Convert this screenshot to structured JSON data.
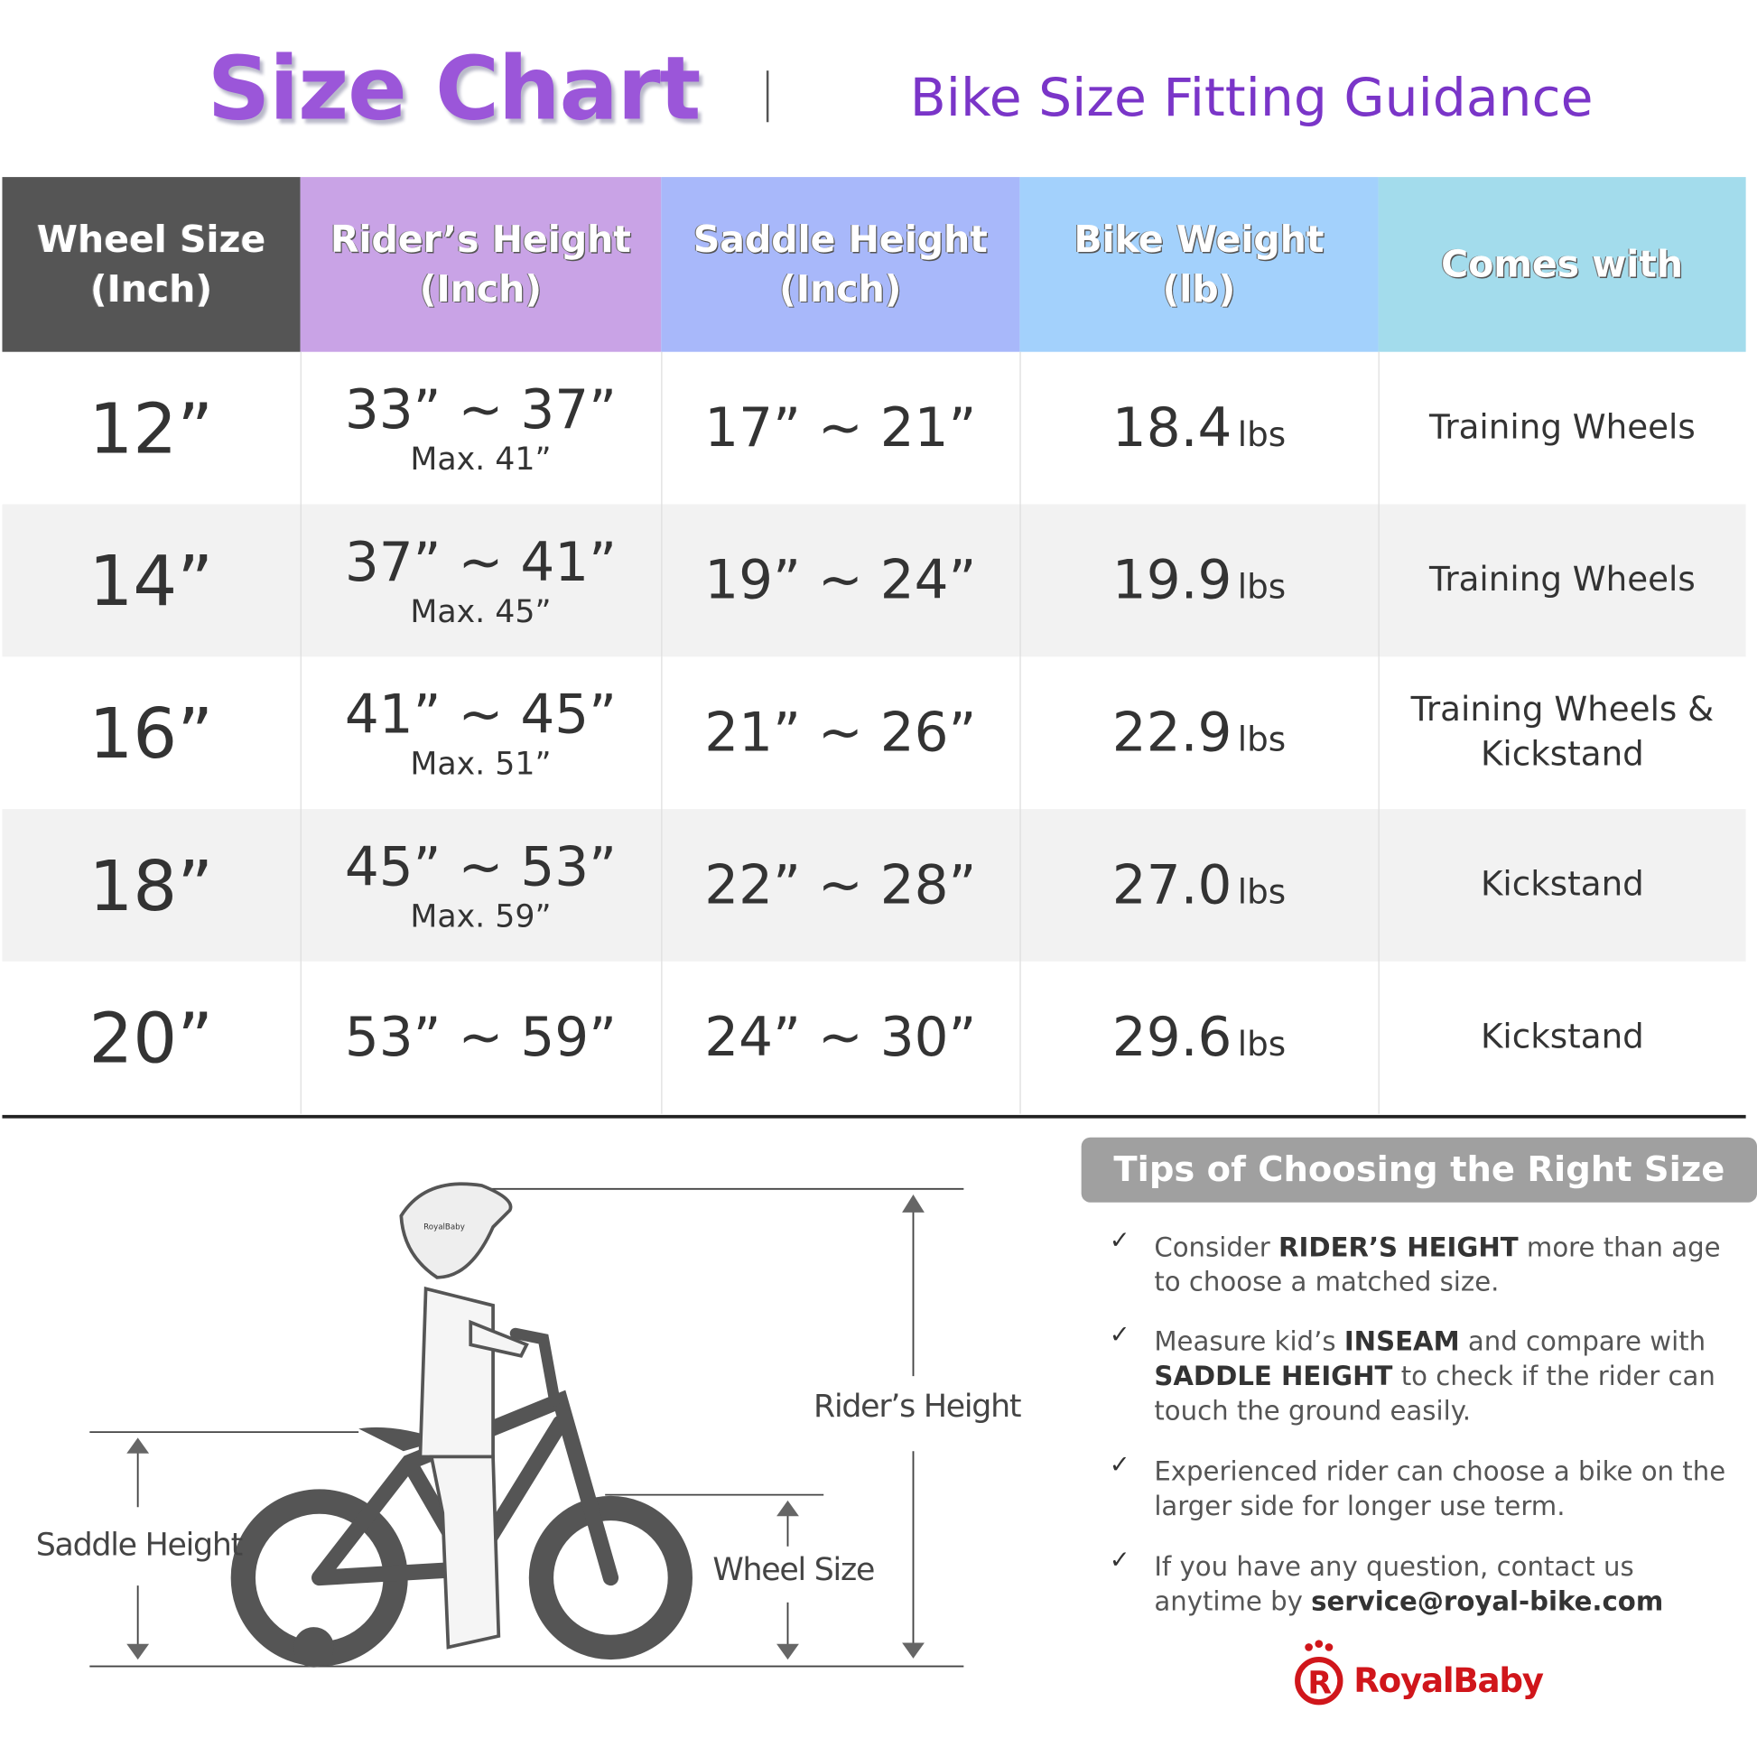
{
  "header": {
    "title": "Size Chart",
    "subtitle": "Bike Size Fitting Guidance"
  },
  "colors": {
    "title": "#9b56d9",
    "col_wheel": "#555555",
    "col_rider": "#c9a3e6",
    "col_saddle": "#a8b8fa",
    "col_weight": "#a3d1fc",
    "col_comes": "#a3dcec",
    "brand": "#d0161b"
  },
  "table": {
    "columns": [
      {
        "line1": "Wheel Size",
        "line2": "(Inch)"
      },
      {
        "line1": "Rider’s Height",
        "line2": "(Inch)"
      },
      {
        "line1": "Saddle Height",
        "line2": "(Inch)"
      },
      {
        "line1": "Bike Weight",
        "line2": "(lb)"
      },
      {
        "line1": "Comes with",
        "line2": ""
      }
    ],
    "rows": [
      {
        "wheel": "12”",
        "rider": "33” ~ 37”",
        "rider_max": "Max. 41”",
        "saddle": "17” ~ 21”",
        "weight": "18.4",
        "unit": "lbs",
        "comes": "Training Wheels",
        "comes2": ""
      },
      {
        "wheel": "14”",
        "rider": "37” ~ 41”",
        "rider_max": "Max. 45”",
        "saddle": "19” ~ 24”",
        "weight": "19.9",
        "unit": "lbs",
        "comes": "Training Wheels",
        "comes2": ""
      },
      {
        "wheel": "16”",
        "rider": "41” ~ 45”",
        "rider_max": "Max. 51”",
        "saddle": "21” ~ 26”",
        "weight": "22.9",
        "unit": "lbs",
        "comes": "Training Wheels &",
        "comes2": "Kickstand"
      },
      {
        "wheel": "18”",
        "rider": "45” ~ 53”",
        "rider_max": "Max. 59”",
        "saddle": "22” ~ 28”",
        "weight": "27.0",
        "unit": "lbs",
        "comes": "Kickstand",
        "comes2": ""
      },
      {
        "wheel": "20”",
        "rider": "53” ~ 59”",
        "rider_max": "",
        "saddle": "24” ~ 30”",
        "weight": "29.6",
        "unit": "lbs",
        "comes": "Kickstand",
        "comes2": ""
      }
    ]
  },
  "diagram": {
    "riders_height": "Rider’s Height",
    "saddle_height": "Saddle Height",
    "wheel_size": "Wheel Size",
    "helmet_text": "RoyalBaby"
  },
  "tips": {
    "title": "Tips of Choosing the Right Size",
    "items": [
      {
        "a": "Consider ",
        "b": "RIDER’S HEIGHT",
        "c": " more than age to choose a matched size.",
        "d": "",
        "e": ""
      },
      {
        "a": "Measure kid’s ",
        "b": "INSEAM",
        "c": " and compare with ",
        "d": "SADDLE HEIGHT",
        "e": " to check if the rider can touch the ground easily."
      },
      {
        "a": "Experienced rider can choose a bike on the larger side for longer use term.",
        "b": "",
        "c": "",
        "d": "",
        "e": ""
      },
      {
        "a": "If you have any question, contact us anytime by ",
        "b": "service@royal-bike.com",
        "c": "",
        "d": "",
        "e": ""
      }
    ],
    "check": "✓"
  },
  "brand": {
    "name": "RoyalBaby"
  }
}
